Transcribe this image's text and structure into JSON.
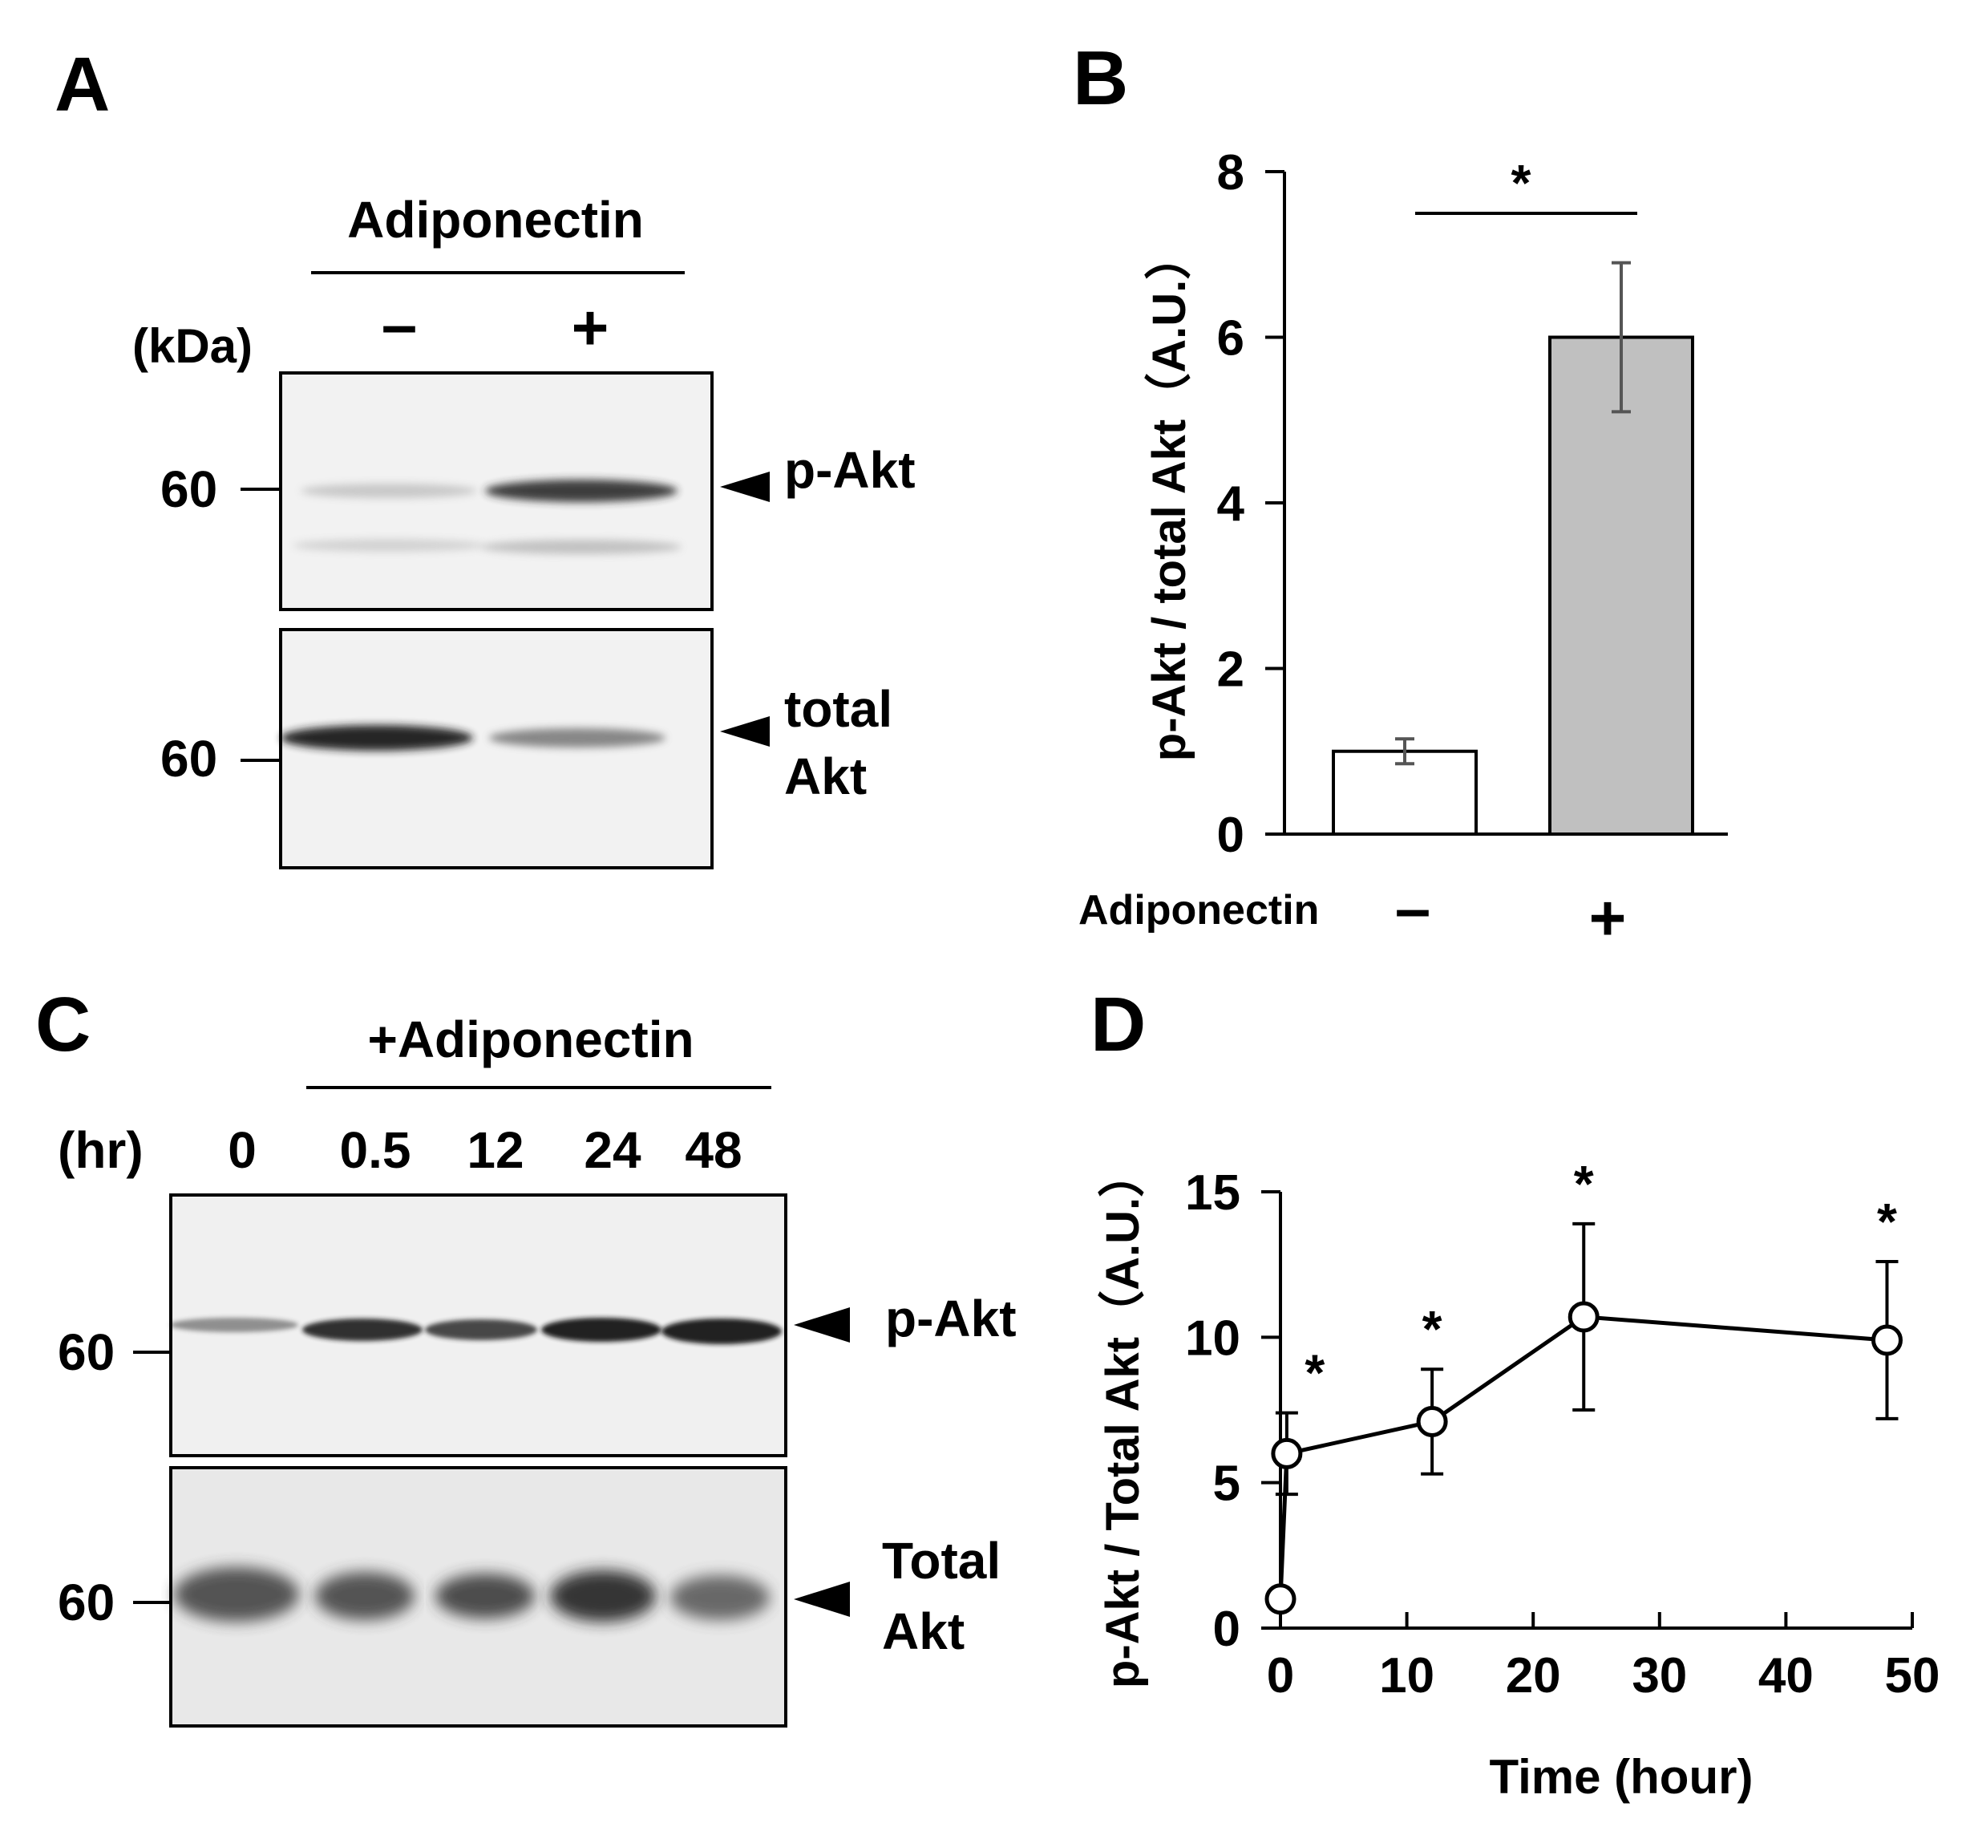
{
  "panel_labels": {
    "a": "A",
    "b": "B",
    "c": "C",
    "d": "D"
  },
  "panel_a": {
    "treatment": "Adiponectin",
    "unit": "(kDa)",
    "lanes": [
      "–",
      "+"
    ],
    "marker": "60",
    "band_labels": {
      "pakt": "p-Akt",
      "total_line1": "total",
      "total_line2": "Akt"
    }
  },
  "panel_c": {
    "treatment": "+Adiponectin",
    "unit": "(hr)",
    "lanes": [
      "0",
      "0.5",
      "12",
      "24",
      "48"
    ],
    "marker": "60",
    "band_labels": {
      "pakt": "p-Akt",
      "total_line1": "Total",
      "total_line2": "Akt"
    }
  },
  "chart_data": [
    {
      "panel": "B",
      "type": "bar",
      "ylabel": "p-Akt / total Akt（A.U.）",
      "xlabel": "Adiponectin",
      "categories": [
        "–",
        "+"
      ],
      "values": [
        1.0,
        6.0
      ],
      "errors": [
        0.15,
        0.9
      ],
      "bar_colors": [
        "#ffffff",
        "#c0c0c0"
      ],
      "ylim": [
        0,
        8
      ],
      "yticks": [
        0,
        2,
        4,
        6,
        8
      ],
      "significance": "*"
    },
    {
      "panel": "D",
      "type": "line",
      "ylabel": "p-Akt / Total Akt（A.U.）",
      "xlabel": "Time (hour)",
      "x": [
        0,
        0.5,
        12,
        24,
        48
      ],
      "y": [
        1.0,
        6.0,
        7.1,
        10.7,
        9.9
      ],
      "errors": [
        0,
        1.4,
        1.8,
        3.2,
        2.7
      ],
      "significant": [
        false,
        true,
        true,
        true,
        true
      ],
      "significance": "*",
      "xlim": [
        0,
        50
      ],
      "ylim": [
        0,
        15
      ],
      "xticks": [
        0,
        10,
        20,
        30,
        40,
        50
      ],
      "yticks": [
        0,
        5,
        10,
        15
      ]
    }
  ]
}
